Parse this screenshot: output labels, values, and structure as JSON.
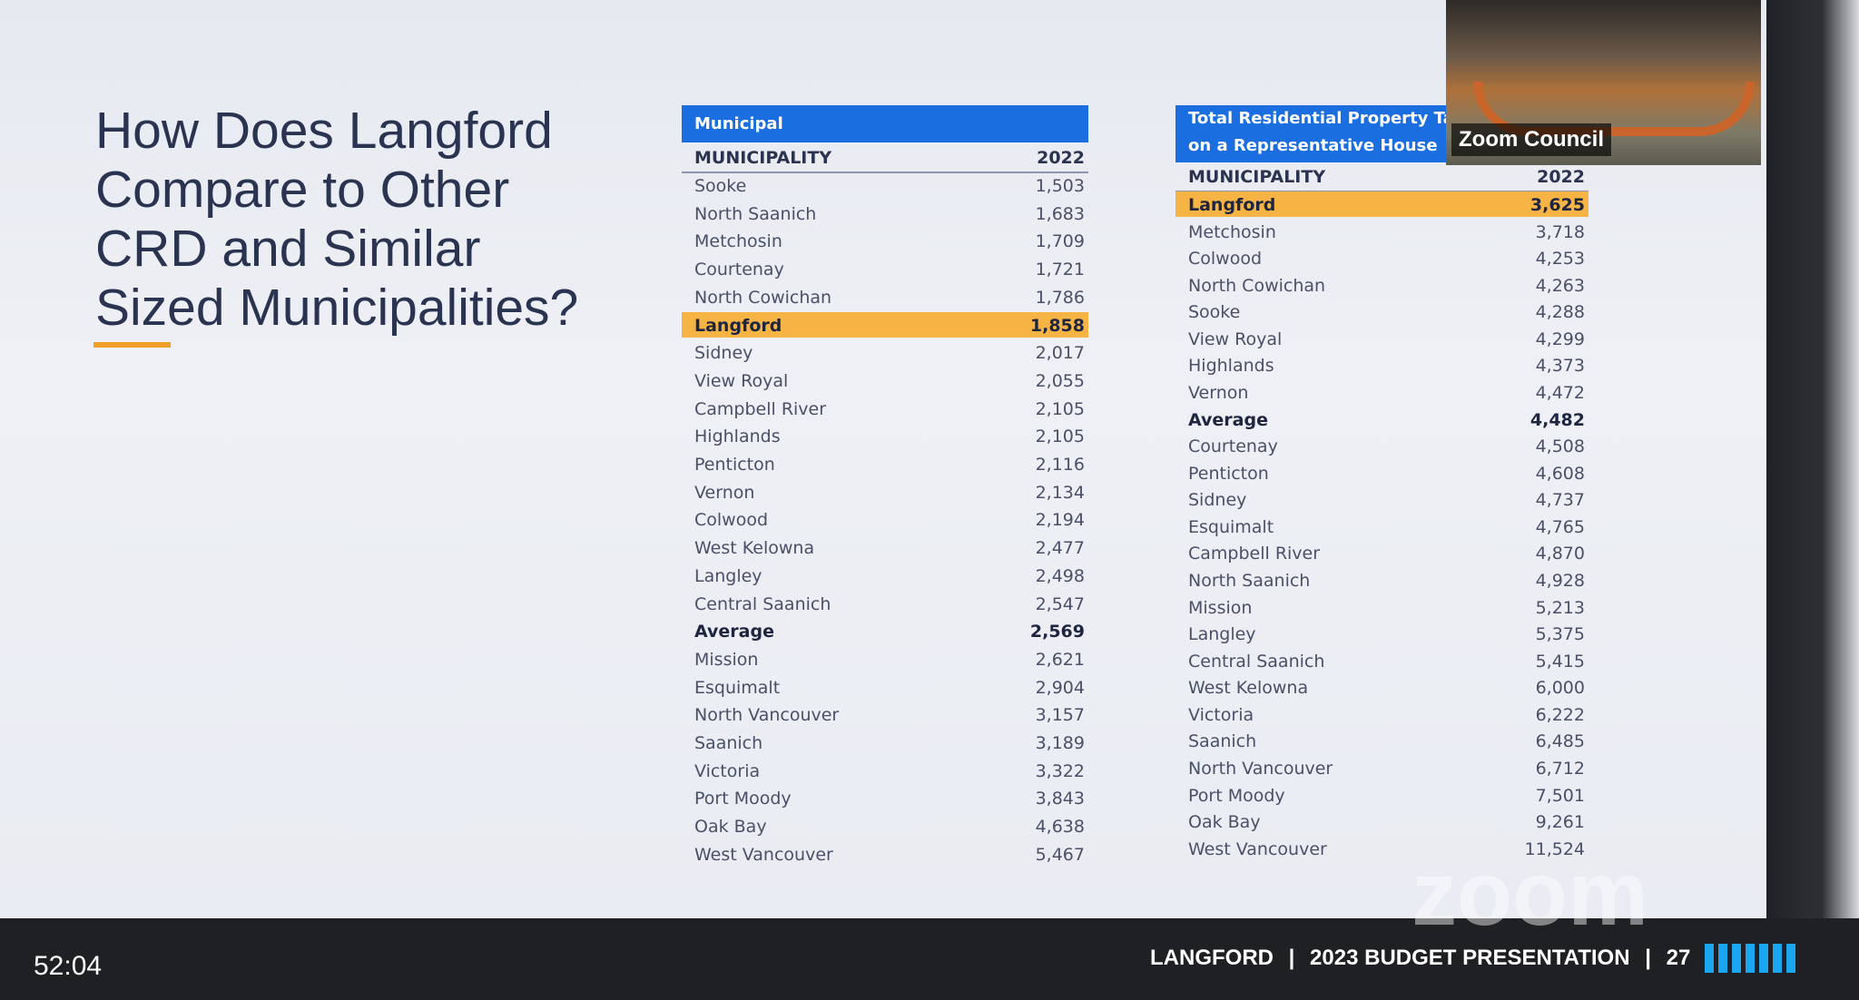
{
  "slide": {
    "title_lines": [
      "How Does Langford",
      "Compare to Other",
      "CRD and Similar",
      "Sized Municipalities?"
    ],
    "table1": {
      "header": [
        "Municipal"
      ],
      "columns": [
        "MUNICIPALITY",
        "2022"
      ],
      "rows": [
        [
          "Sooke",
          "1,503"
        ],
        [
          "North Saanich",
          "1,683"
        ],
        [
          "Metchosin",
          "1,709"
        ],
        [
          "Courtenay",
          "1,721"
        ],
        [
          "North Cowichan",
          "1,786"
        ],
        [
          "Langford",
          "1,858"
        ],
        [
          "Sidney",
          "2,017"
        ],
        [
          "View Royal",
          "2,055"
        ],
        [
          "Campbell River",
          "2,105"
        ],
        [
          "Highlands",
          "2,105"
        ],
        [
          "Penticton",
          "2,116"
        ],
        [
          "Vernon",
          "2,134"
        ],
        [
          "Colwood",
          "2,194"
        ],
        [
          "West Kelowna",
          "2,477"
        ],
        [
          "Langley",
          "2,498"
        ],
        [
          "Central Saanich",
          "2,547"
        ],
        [
          "Average",
          "2,569"
        ],
        [
          "Mission",
          "2,621"
        ],
        [
          "Esquimalt",
          "2,904"
        ],
        [
          "North Vancouver",
          "3,157"
        ],
        [
          "Saanich",
          "3,189"
        ],
        [
          "Victoria",
          "3,322"
        ],
        [
          "Port Moody",
          "3,843"
        ],
        [
          "Oak Bay",
          "4,638"
        ],
        [
          "West Vancouver",
          "5,467"
        ]
      ]
    },
    "table2": {
      "header": [
        "Total Residential Property Taxe",
        "on a Representative House"
      ],
      "columns": [
        "MUNICIPALITY",
        "2022"
      ],
      "rows": [
        [
          "Langford",
          "3,625"
        ],
        [
          "Metchosin",
          "3,718"
        ],
        [
          "Colwood",
          "4,253"
        ],
        [
          "North Cowichan",
          "4,263"
        ],
        [
          "Sooke",
          "4,288"
        ],
        [
          "View Royal",
          "4,299"
        ],
        [
          "Highlands",
          "4,373"
        ],
        [
          "Vernon",
          "4,472"
        ],
        [
          "Average",
          "4,482"
        ],
        [
          "Courtenay",
          "4,508"
        ],
        [
          "Penticton",
          "4,608"
        ],
        [
          "Sidney",
          "4,737"
        ],
        [
          "Esquimalt",
          "4,765"
        ],
        [
          "Campbell River",
          "4,870"
        ],
        [
          "North Saanich",
          "4,928"
        ],
        [
          "Mission",
          "5,213"
        ],
        [
          "Langley",
          "5,375"
        ],
        [
          "Central Saanich",
          "5,415"
        ],
        [
          "West Kelowna",
          "6,000"
        ],
        [
          "Victoria",
          "6,222"
        ],
        [
          "Saanich",
          "6,485"
        ],
        [
          "North Vancouver",
          "6,712"
        ],
        [
          "Port Moody",
          "7,501"
        ],
        [
          "Oak Bay",
          "9,261"
        ],
        [
          "West Vancouver",
          "11,524"
        ]
      ]
    },
    "footer": {
      "org": "LANGFORD",
      "presentation": "2023 BUDGET PRESENTATION",
      "page": "27"
    }
  },
  "zoom": {
    "participant_label": "Zoom Council",
    "watermark": "zoom",
    "elapsed": "52:04"
  }
}
